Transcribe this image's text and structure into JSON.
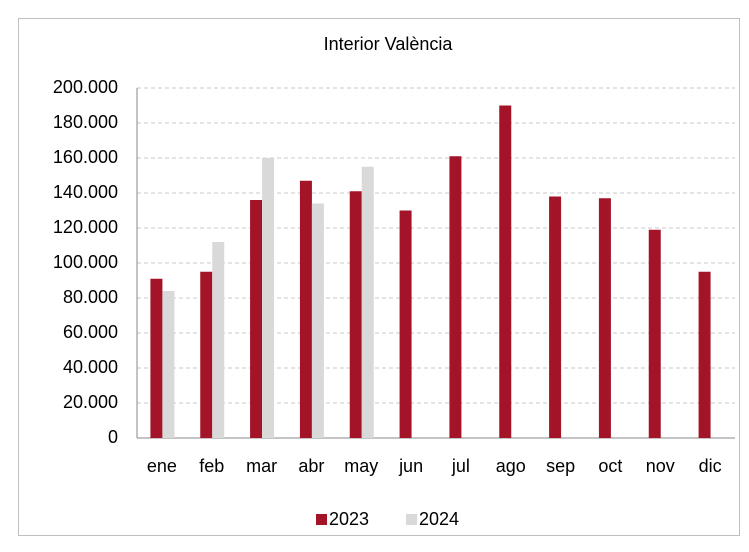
{
  "chart_data": {
    "type": "bar",
    "title": "Interior València",
    "categories": [
      "ene",
      "feb",
      "mar",
      "abr",
      "may",
      "jun",
      "jul",
      "ago",
      "sep",
      "oct",
      "nov",
      "dic"
    ],
    "series": [
      {
        "name": "2023",
        "color": "#a31428",
        "values": [
          91000,
          95000,
          136000,
          147000,
          141000,
          130000,
          161000,
          190000,
          138000,
          137000,
          119000,
          95000
        ]
      },
      {
        "name": "2024",
        "color": "#d9d9d9",
        "values": [
          84000,
          112000,
          160000,
          134000,
          155000,
          null,
          null,
          null,
          null,
          null,
          null,
          null
        ]
      }
    ],
    "ylim": [
      0,
      200000
    ],
    "yticks": [
      0,
      {
        "value": 20000,
        "label": "20.000"
      },
      {
        "value": 40000,
        "label": "40.000"
      },
      {
        "value": 60000,
        "label": "60.000"
      },
      {
        "value": 80000,
        "label": "80.000"
      },
      {
        "value": 100000,
        "label": "100.000"
      },
      {
        "value": 120000,
        "label": "120.000"
      },
      {
        "value": 140000,
        "label": "140.000"
      },
      {
        "value": 160000,
        "label": "160.000"
      },
      {
        "value": 180000,
        "label": "180.000"
      },
      {
        "value": 200000,
        "label": "200.000"
      }
    ],
    "grid": true,
    "legend": "bottom"
  }
}
